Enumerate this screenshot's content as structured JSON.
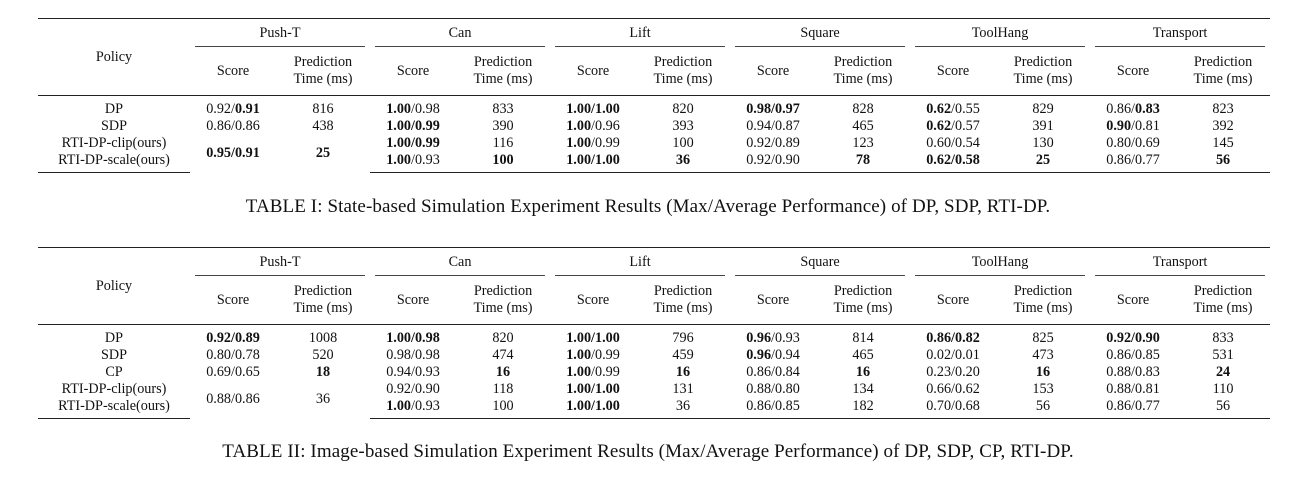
{
  "table1": {
    "policy_header": "Policy",
    "score_label": "Score",
    "time_label_line1": "Prediction",
    "time_label_line2": "Time (ms)",
    "environments": [
      "Push-T",
      "Can",
      "Lift",
      "Square",
      "ToolHang",
      "Transport"
    ],
    "rows": [
      {
        "policy": "DP",
        "cells": [
          {
            "parts": [
              {
                "t": "0.92/"
              },
              {
                "t": "0.91",
                "b": true
              }
            ]
          },
          {
            "parts": [
              {
                "t": "816"
              }
            ]
          },
          {
            "parts": [
              {
                "t": "1.00",
                "b": true
              },
              {
                "t": "/0.98"
              }
            ]
          },
          {
            "parts": [
              {
                "t": "833"
              }
            ]
          },
          {
            "parts": [
              {
                "t": "1.00/1.00",
                "b": true
              }
            ]
          },
          {
            "parts": [
              {
                "t": "820"
              }
            ]
          },
          {
            "parts": [
              {
                "t": "0.98/0.97",
                "b": true
              }
            ]
          },
          {
            "parts": [
              {
                "t": "828"
              }
            ]
          },
          {
            "parts": [
              {
                "t": "0.62",
                "b": true
              },
              {
                "t": "/0.55"
              }
            ]
          },
          {
            "parts": [
              {
                "t": "829"
              }
            ]
          },
          {
            "parts": [
              {
                "t": "0.86/"
              },
              {
                "t": "0.83",
                "b": true
              }
            ]
          },
          {
            "parts": [
              {
                "t": "823"
              }
            ]
          }
        ]
      },
      {
        "policy": "SDP",
        "cells": [
          {
            "parts": [
              {
                "t": "0.86/0.86"
              }
            ]
          },
          {
            "parts": [
              {
                "t": "438"
              }
            ]
          },
          {
            "parts": [
              {
                "t": "1.00/0.99",
                "b": true
              }
            ]
          },
          {
            "parts": [
              {
                "t": "390"
              }
            ]
          },
          {
            "parts": [
              {
                "t": "1.00",
                "b": true
              },
              {
                "t": "/0.96"
              }
            ]
          },
          {
            "parts": [
              {
                "t": "393"
              }
            ]
          },
          {
            "parts": [
              {
                "t": "0.94/0.87"
              }
            ]
          },
          {
            "parts": [
              {
                "t": "465"
              }
            ]
          },
          {
            "parts": [
              {
                "t": "0.62",
                "b": true
              },
              {
                "t": "/0.57"
              }
            ]
          },
          {
            "parts": [
              {
                "t": "391"
              }
            ]
          },
          {
            "parts": [
              {
                "t": "0.90",
                "b": true
              },
              {
                "t": "/0.81"
              }
            ]
          },
          {
            "parts": [
              {
                "t": "392"
              }
            ]
          }
        ]
      },
      {
        "policy": "RTI-DP-clip(ours)",
        "cells": [
          {
            "span": true,
            "parts": [
              {
                "t": "0.95/0.91",
                "b": true
              }
            ]
          },
          {
            "span": true,
            "parts": [
              {
                "t": "25",
                "b": true
              }
            ]
          },
          {
            "parts": [
              {
                "t": "1.00/0.99",
                "b": true
              }
            ]
          },
          {
            "parts": [
              {
                "t": "116"
              }
            ]
          },
          {
            "parts": [
              {
                "t": "1.00",
                "b": true
              },
              {
                "t": "/0.99"
              }
            ]
          },
          {
            "parts": [
              {
                "t": "100"
              }
            ]
          },
          {
            "parts": [
              {
                "t": "0.92/0.89"
              }
            ]
          },
          {
            "parts": [
              {
                "t": "123"
              }
            ]
          },
          {
            "parts": [
              {
                "t": "0.60/0.54"
              }
            ]
          },
          {
            "parts": [
              {
                "t": "130"
              }
            ]
          },
          {
            "parts": [
              {
                "t": "0.80/0.69"
              }
            ]
          },
          {
            "parts": [
              {
                "t": "145"
              }
            ]
          }
        ]
      },
      {
        "policy": "RTI-DP-scale(ours)",
        "cells": [
          {
            "parts": [
              {
                "t": "1.00",
                "b": true
              },
              {
                "t": "/0.93"
              }
            ]
          },
          {
            "parts": [
              {
                "t": "100",
                "b": true
              }
            ]
          },
          {
            "parts": [
              {
                "t": "1.00/1.00",
                "b": true
              }
            ]
          },
          {
            "parts": [
              {
                "t": "36",
                "b": true
              }
            ]
          },
          {
            "parts": [
              {
                "t": "0.92/0.90"
              }
            ]
          },
          {
            "parts": [
              {
                "t": "78",
                "b": true
              }
            ]
          },
          {
            "parts": [
              {
                "t": "0.62/0.58",
                "b": true
              }
            ]
          },
          {
            "parts": [
              {
                "t": "25",
                "b": true
              }
            ]
          },
          {
            "parts": [
              {
                "t": "0.86/0.77"
              }
            ]
          },
          {
            "parts": [
              {
                "t": "56",
                "b": true
              }
            ]
          }
        ]
      }
    ],
    "caption": "TABLE I: State-based Simulation Experiment Results (Max/Average Performance) of DP, SDP, RTI-DP."
  },
  "table2": {
    "policy_header": "Policy",
    "score_label": "Score",
    "time_label_line1": "Prediction",
    "time_label_line2": "Time (ms)",
    "environments": [
      "Push-T",
      "Can",
      "Lift",
      "Square",
      "ToolHang",
      "Transport"
    ],
    "rows": [
      {
        "policy": "DP",
        "cells": [
          {
            "parts": [
              {
                "t": "0.92/0.89",
                "b": true
              }
            ]
          },
          {
            "parts": [
              {
                "t": "1008"
              }
            ]
          },
          {
            "parts": [
              {
                "t": "1.00/0.98",
                "b": true
              }
            ]
          },
          {
            "parts": [
              {
                "t": "820"
              }
            ]
          },
          {
            "parts": [
              {
                "t": "1.00/1.00",
                "b": true
              }
            ]
          },
          {
            "parts": [
              {
                "t": "796"
              }
            ]
          },
          {
            "parts": [
              {
                "t": "0.96",
                "b": true
              },
              {
                "t": "/0.93"
              }
            ]
          },
          {
            "parts": [
              {
                "t": "814"
              }
            ]
          },
          {
            "parts": [
              {
                "t": "0.86/0.82",
                "b": true
              }
            ]
          },
          {
            "parts": [
              {
                "t": "825"
              }
            ]
          },
          {
            "parts": [
              {
                "t": "0.92/0.90",
                "b": true
              }
            ]
          },
          {
            "parts": [
              {
                "t": "833"
              }
            ]
          }
        ]
      },
      {
        "policy": "SDP",
        "cells": [
          {
            "parts": [
              {
                "t": "0.80/0.78"
              }
            ]
          },
          {
            "parts": [
              {
                "t": "520"
              }
            ]
          },
          {
            "parts": [
              {
                "t": "0.98/0.98"
              }
            ]
          },
          {
            "parts": [
              {
                "t": "474"
              }
            ]
          },
          {
            "parts": [
              {
                "t": "1.00",
                "b": true
              },
              {
                "t": "/0.99"
              }
            ]
          },
          {
            "parts": [
              {
                "t": "459"
              }
            ]
          },
          {
            "parts": [
              {
                "t": "0.96",
                "b": true
              },
              {
                "t": "/0.94"
              }
            ]
          },
          {
            "parts": [
              {
                "t": "465"
              }
            ]
          },
          {
            "parts": [
              {
                "t": "0.02/0.01"
              }
            ]
          },
          {
            "parts": [
              {
                "t": "473"
              }
            ]
          },
          {
            "parts": [
              {
                "t": "0.86/0.85"
              }
            ]
          },
          {
            "parts": [
              {
                "t": "531"
              }
            ]
          }
        ]
      },
      {
        "policy": "CP",
        "cells": [
          {
            "parts": [
              {
                "t": "0.69/0.65"
              }
            ]
          },
          {
            "parts": [
              {
                "t": "18",
                "b": true
              }
            ]
          },
          {
            "parts": [
              {
                "t": "0.94/0.93"
              }
            ]
          },
          {
            "parts": [
              {
                "t": "16",
                "b": true
              }
            ]
          },
          {
            "parts": [
              {
                "t": "1.00",
                "b": true
              },
              {
                "t": "/0.99"
              }
            ]
          },
          {
            "parts": [
              {
                "t": "16",
                "b": true
              }
            ]
          },
          {
            "parts": [
              {
                "t": "0.86/0.84"
              }
            ]
          },
          {
            "parts": [
              {
                "t": "16",
                "b": true
              }
            ]
          },
          {
            "parts": [
              {
                "t": "0.23/0.20"
              }
            ]
          },
          {
            "parts": [
              {
                "t": "16",
                "b": true
              }
            ]
          },
          {
            "parts": [
              {
                "t": "0.88/0.83"
              }
            ]
          },
          {
            "parts": [
              {
                "t": "24",
                "b": true
              }
            ]
          }
        ]
      },
      {
        "policy": "RTI-DP-clip(ours)",
        "cells": [
          {
            "span": true,
            "parts": [
              {
                "t": "0.88/0.86"
              }
            ]
          },
          {
            "span": true,
            "parts": [
              {
                "t": "36"
              }
            ]
          },
          {
            "parts": [
              {
                "t": "0.92/0.90"
              }
            ]
          },
          {
            "parts": [
              {
                "t": "118"
              }
            ]
          },
          {
            "parts": [
              {
                "t": "1.00/1.00",
                "b": true
              }
            ]
          },
          {
            "parts": [
              {
                "t": "131"
              }
            ]
          },
          {
            "parts": [
              {
                "t": "0.88/0.80"
              }
            ]
          },
          {
            "parts": [
              {
                "t": "134"
              }
            ]
          },
          {
            "parts": [
              {
                "t": "0.66/0.62"
              }
            ]
          },
          {
            "parts": [
              {
                "t": "153"
              }
            ]
          },
          {
            "parts": [
              {
                "t": "0.88/0.81"
              }
            ]
          },
          {
            "parts": [
              {
                "t": "110"
              }
            ]
          }
        ]
      },
      {
        "policy": "RTI-DP-scale(ours)",
        "cells": [
          {
            "parts": [
              {
                "t": "1.00",
                "b": true
              },
              {
                "t": "/0.93"
              }
            ]
          },
          {
            "parts": [
              {
                "t": "100"
              }
            ]
          },
          {
            "parts": [
              {
                "t": "1.00/1.00",
                "b": true
              }
            ]
          },
          {
            "parts": [
              {
                "t": "36"
              }
            ]
          },
          {
            "parts": [
              {
                "t": "0.86/0.85"
              }
            ]
          },
          {
            "parts": [
              {
                "t": "182"
              }
            ]
          },
          {
            "parts": [
              {
                "t": "0.70/0.68"
              }
            ]
          },
          {
            "parts": [
              {
                "t": "56"
              }
            ]
          },
          {
            "parts": [
              {
                "t": "0.86/0.77"
              }
            ]
          },
          {
            "parts": [
              {
                "t": "56"
              }
            ]
          }
        ]
      }
    ],
    "caption": "TABLE II: Image-based Simulation Experiment Results (Max/Average Performance) of DP, SDP, CP, RTI-DP."
  }
}
